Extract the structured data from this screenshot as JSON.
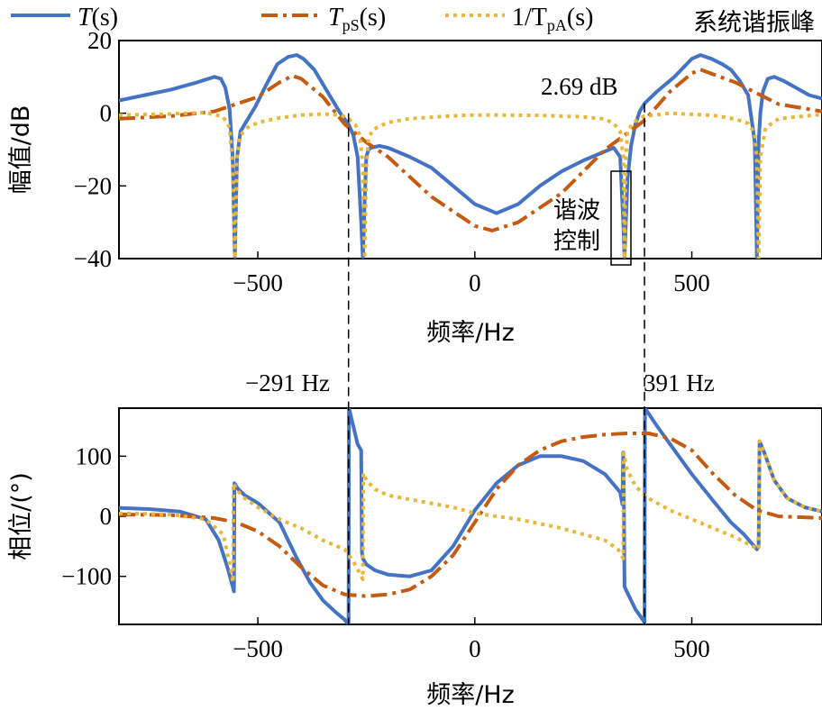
{
  "chart_data": [
    {
      "type": "line",
      "title": "",
      "xlabel": "频率/Hz",
      "ylabel": "幅值/dB",
      "xlim": [
        -820,
        800
      ],
      "ylim": [
        -40,
        20
      ],
      "xticks": [
        -500,
        0,
        500
      ],
      "xtick_labels": [
        "−500",
        "0",
        "500"
      ],
      "yticks": [
        20,
        0,
        -20,
        -40
      ],
      "ytick_labels": [
        "20",
        "0",
        "−20",
        "−40"
      ],
      "grid": false,
      "legend_position": "top",
      "legend": [
        {
          "label_main": "T",
          "label_sub": "",
          "label_tail": "(s)",
          "color": "#4472C4",
          "dash": "solid"
        },
        {
          "label_main": "T",
          "label_sub": "pS",
          "label_tail": "(s)",
          "color": "#C55A11",
          "dash": "dashdot"
        },
        {
          "label_main": "1/T",
          "label_sub": "pA",
          "label_tail": "(s)",
          "color": "#E8B73A",
          "dash": "dotted"
        }
      ],
      "corner_label": "系统谐振峰",
      "annotations": {
        "peak_value": "2.69 dB",
        "harmonic_control": [
          "谐波",
          "控制"
        ]
      },
      "series": [
        {
          "name": "T(s)",
          "color": "#4472C4",
          "x": [
            -820,
            -760,
            -700,
            -640,
            -600,
            -585,
            -575,
            -565,
            -558,
            -553,
            -548,
            -540,
            -525,
            -505,
            -480,
            -455,
            -430,
            -410,
            -395,
            -370,
            -340,
            -310,
            -291,
            -280,
            -270,
            -262,
            -258,
            -254,
            -250,
            -245,
            -240,
            -220,
            -200,
            -150,
            -100,
            -50,
            0,
            50,
            100,
            150,
            200,
            250,
            300,
            320,
            335,
            342,
            345,
            348,
            352,
            360,
            370,
            380,
            391,
            420,
            460,
            500,
            520,
            545,
            570,
            590,
            610,
            630,
            645,
            650,
            654,
            658,
            664,
            675,
            690,
            710,
            740,
            770,
            800
          ],
          "y": [
            3.5,
            5,
            6.5,
            8.5,
            10,
            9.5,
            7,
            1,
            -12,
            -40,
            -12,
            -5,
            -2,
            2,
            8,
            13.5,
            15.5,
            16,
            15,
            12,
            6,
            0,
            -3,
            -6,
            -12,
            -30,
            -40,
            -25,
            -12,
            -10,
            -9.5,
            -9,
            -9.5,
            -12,
            -15,
            -20,
            -25,
            -27.5,
            -25,
            -20,
            -16,
            -13,
            -10.5,
            -9.5,
            -12,
            -30,
            -40,
            -30,
            -18,
            -9,
            -3,
            0.5,
            2.69,
            6,
            10,
            15,
            16,
            15,
            13.5,
            12,
            9,
            5,
            -8,
            -40,
            -8,
            0,
            6,
            9.5,
            10,
            9,
            7,
            5,
            4
          ]
        },
        {
          "name": "TpS(s)",
          "color": "#C55A11",
          "x": [
            -820,
            -700,
            -600,
            -500,
            -450,
            -420,
            -400,
            -350,
            -300,
            -250,
            -200,
            -100,
            0,
            40,
            100,
            200,
            300,
            391,
            450,
            500,
            520,
            600,
            700,
            800
          ],
          "y": [
            -1.5,
            -0.8,
            0.5,
            4.5,
            8.5,
            10.3,
            9.5,
            4.5,
            -3,
            -8,
            -12,
            -23,
            -31,
            -32.3,
            -30,
            -22,
            -10,
            -2,
            6,
            11,
            12,
            8.5,
            2.5,
            0.5
          ]
        },
        {
          "name": "1/TpA(s)",
          "color": "#E8B73A",
          "x": [
            -820,
            -700,
            -620,
            -580,
            -565,
            -558,
            -553,
            -548,
            -540,
            -520,
            -490,
            -450,
            -400,
            -350,
            -310,
            -291,
            -275,
            -265,
            -258,
            -254,
            -250,
            -245,
            -235,
            -200,
            -150,
            -50,
            0,
            50,
            150,
            250,
            300,
            320,
            335,
            342,
            345,
            348,
            352,
            365,
            391,
            450,
            550,
            600,
            630,
            645,
            650,
            654,
            658,
            670,
            700,
            800
          ],
          "y": [
            -0.5,
            -0.2,
            0.2,
            -1,
            -4,
            -14,
            -40,
            -12,
            -6,
            -3.5,
            -2.3,
            -1.3,
            -0.5,
            -0.2,
            -0.5,
            -1.5,
            -3.2,
            -6,
            -15,
            -40,
            -15,
            -7,
            -4.5,
            -2.5,
            -1.5,
            -0.7,
            -0.5,
            -0.5,
            -0.6,
            -1,
            -1.6,
            -2.8,
            -5,
            -12,
            -40,
            -12,
            -5,
            -2.5,
            -0.8,
            0,
            -0.6,
            -1.6,
            -2.8,
            -5.5,
            -14,
            -40,
            -12,
            -4,
            -1.5,
            -0.3
          ]
        }
      ]
    },
    {
      "type": "line",
      "title": "",
      "xlabel": "频率/Hz",
      "ylabel": "相位/(°)",
      "xlim": [
        -820,
        800
      ],
      "ylim": [
        -180,
        180
      ],
      "xticks": [
        -500,
        0,
        500
      ],
      "xtick_labels": [
        "−500",
        "0",
        "500"
      ],
      "yticks": [
        100,
        0,
        -100
      ],
      "ytick_labels": [
        "100",
        "0",
        "−100"
      ],
      "grid": false,
      "series": [
        {
          "name": "T(s)",
          "color": "#4472C4",
          "x": [
            -820,
            -750,
            -680,
            -620,
            -590,
            -570,
            -555,
            -554,
            -545,
            -530,
            -500,
            -450,
            -410,
            -380,
            -350,
            -320,
            -300,
            -292,
            -291,
            -290,
            -270,
            -262,
            -260,
            -258,
            -250,
            -230,
            -200,
            -150,
            -100,
            -50,
            0,
            50,
            100,
            150,
            200,
            250,
            300,
            335,
            340,
            342,
            343,
            345,
            350,
            370,
            390,
            391,
            392,
            420,
            460,
            500,
            550,
            590,
            620,
            650,
            654,
            656,
            665,
            690,
            720,
            760,
            800
          ],
          "y": [
            14,
            12,
            8,
            -5,
            -40,
            -85,
            -125,
            55,
            45,
            35,
            22,
            -10,
            -70,
            -110,
            -140,
            -160,
            -172,
            -180,
            -180,
            180,
            120,
            110,
            -60,
            -70,
            -80,
            -90,
            -97,
            -100,
            -90,
            -50,
            10,
            55,
            85,
            100,
            100,
            92,
            70,
            40,
            20,
            106,
            60,
            -117,
            -125,
            -155,
            -175,
            -180,
            180,
            150,
            110,
            70,
            25,
            -10,
            -30,
            -55,
            -50,
            125,
            110,
            60,
            30,
            15,
            8
          ]
        },
        {
          "name": "TpS(s)",
          "color": "#C55A11",
          "x": [
            -820,
            -700,
            -600,
            -550,
            -500,
            -450,
            -400,
            -350,
            -300,
            -250,
            -200,
            -150,
            -100,
            -50,
            0,
            50,
            100,
            150,
            200,
            250,
            300,
            350,
            400,
            450,
            500,
            550,
            600,
            650,
            700,
            800
          ],
          "y": [
            3,
            2,
            -3,
            -10,
            -25,
            -50,
            -85,
            -115,
            -130,
            -133,
            -130,
            -122,
            -100,
            -65,
            -10,
            45,
            85,
            110,
            125,
            132,
            136,
            138,
            138,
            130,
            110,
            70,
            35,
            10,
            0,
            -3
          ]
        },
        {
          "name": "1/TpA(s)",
          "color": "#E8B73A",
          "x": [
            -820,
            -700,
            -620,
            -580,
            -565,
            -557,
            -556,
            -550,
            -530,
            -500,
            -450,
            -400,
            -350,
            -300,
            -280,
            -265,
            -258,
            -257,
            -250,
            -230,
            -200,
            -150,
            -50,
            0,
            100,
            200,
            300,
            330,
            342,
            343,
            345,
            350,
            370,
            400,
            450,
            500,
            550,
            600,
            640,
            654,
            656,
            665,
            690,
            720,
            760,
            800
          ],
          "y": [
            5,
            3,
            -5,
            -30,
            -80,
            -110,
            55,
            45,
            30,
            15,
            -5,
            -20,
            -40,
            -55,
            -75,
            -95,
            -105,
            72,
            60,
            45,
            35,
            28,
            15,
            5,
            -5,
            -20,
            -40,
            -55,
            -70,
            105,
            100,
            80,
            50,
            30,
            10,
            -5,
            -20,
            -35,
            -50,
            -55,
            125,
            110,
            60,
            30,
            15,
            8
          ]
        }
      ]
    }
  ],
  "annotations": {
    "left_marker_label": "−291 Hz",
    "right_marker_label": "391 Hz",
    "marker_x": [
      -291,
      391
    ]
  }
}
